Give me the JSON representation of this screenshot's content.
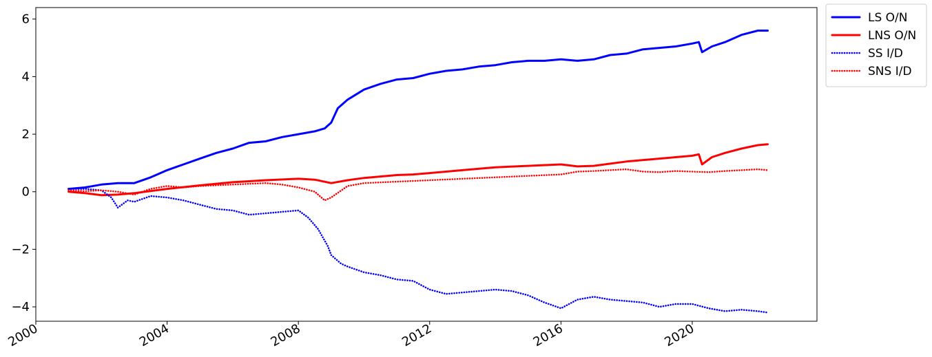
{
  "chart_data": {
    "type": "line",
    "title": "",
    "xlabel": "",
    "ylabel": "",
    "xlim": [
      2000,
      2023.8
    ],
    "ylim": [
      -4.5,
      6.4
    ],
    "x_ticks": [
      2000,
      2004,
      2008,
      2012,
      2016,
      2020
    ],
    "x_tick_labels": [
      "2000",
      "2004",
      "2008",
      "2012",
      "2016",
      "2020"
    ],
    "y_ticks": [
      -4,
      -2,
      0,
      2,
      4,
      6
    ],
    "y_tick_labels": [
      "−4",
      "−2",
      "0",
      "2",
      "4",
      "6"
    ],
    "grid": false,
    "legend": "outside-top-right",
    "series": [
      {
        "name": "LS O/N",
        "color": "#0000ff",
        "style": "solid",
        "x": [
          2001.0,
          2001.5,
          2002.0,
          2002.5,
          2003.0,
          2003.5,
          2004.0,
          2004.5,
          2005.0,
          2005.5,
          2006.0,
          2006.5,
          2007.0,
          2007.5,
          2008.0,
          2008.5,
          2008.8,
          2009.0,
          2009.2,
          2009.5,
          2010.0,
          2010.5,
          2011.0,
          2011.5,
          2012.0,
          2012.5,
          2013.0,
          2013.5,
          2014.0,
          2014.5,
          2015.0,
          2015.5,
          2016.0,
          2016.5,
          2017.0,
          2017.5,
          2018.0,
          2018.5,
          2019.0,
          2019.5,
          2020.0,
          2020.2,
          2020.3,
          2020.6,
          2021.0,
          2021.5,
          2022.0,
          2022.3
        ],
        "y": [
          0.1,
          0.15,
          0.25,
          0.3,
          0.3,
          0.5,
          0.75,
          0.95,
          1.15,
          1.35,
          1.5,
          1.7,
          1.75,
          1.9,
          2.0,
          2.1,
          2.2,
          2.4,
          2.9,
          3.2,
          3.55,
          3.75,
          3.9,
          3.95,
          4.1,
          4.2,
          4.25,
          4.35,
          4.4,
          4.5,
          4.55,
          4.55,
          4.6,
          4.55,
          4.6,
          4.75,
          4.8,
          4.95,
          5.0,
          5.05,
          5.15,
          5.2,
          4.85,
          5.05,
          5.2,
          5.45,
          5.6,
          5.6
        ]
      },
      {
        "name": "LNS O/N",
        "color": "#ff0000",
        "style": "solid",
        "x": [
          2001.0,
          2001.5,
          2002.0,
          2002.5,
          2003.0,
          2004.0,
          2005.0,
          2006.0,
          2007.0,
          2008.0,
          2008.5,
          2009.0,
          2009.5,
          2010.0,
          2011.0,
          2011.5,
          2012.0,
          2013.0,
          2014.0,
          2015.0,
          2016.0,
          2016.5,
          2017.0,
          2018.0,
          2019.0,
          2020.0,
          2020.2,
          2020.3,
          2020.6,
          2021.0,
          2021.5,
          2022.0,
          2022.3
        ],
        "y": [
          0.0,
          -0.05,
          -0.12,
          -0.1,
          -0.05,
          0.1,
          0.22,
          0.33,
          0.4,
          0.45,
          0.42,
          0.3,
          0.4,
          0.48,
          0.58,
          0.6,
          0.65,
          0.75,
          0.85,
          0.9,
          0.95,
          0.88,
          0.9,
          1.05,
          1.15,
          1.25,
          1.3,
          0.95,
          1.2,
          1.35,
          1.5,
          1.62,
          1.65
        ]
      },
      {
        "name": "SS I/D",
        "color": "#0000ff",
        "style": "dotted",
        "x": [
          2001.0,
          2001.5,
          2002.0,
          2002.3,
          2002.5,
          2002.8,
          2003.0,
          2003.5,
          2004.0,
          2004.5,
          2005.0,
          2005.5,
          2006.0,
          2006.5,
          2007.0,
          2007.5,
          2008.0,
          2008.3,
          2008.6,
          2008.9,
          2009.0,
          2009.3,
          2009.5,
          2010.0,
          2010.5,
          2011.0,
          2011.5,
          2012.0,
          2012.5,
          2013.0,
          2013.5,
          2014.0,
          2014.5,
          2015.0,
          2015.5,
          2016.0,
          2016.5,
          2017.0,
          2017.5,
          2018.0,
          2018.5,
          2019.0,
          2019.5,
          2020.0,
          2020.5,
          2021.0,
          2021.5,
          2022.0,
          2022.3
        ],
        "y": [
          0.1,
          0.1,
          0.05,
          -0.2,
          -0.55,
          -0.3,
          -0.35,
          -0.15,
          -0.2,
          -0.3,
          -0.45,
          -0.6,
          -0.65,
          -0.8,
          -0.75,
          -0.7,
          -0.65,
          -0.9,
          -1.3,
          -1.9,
          -2.2,
          -2.5,
          -2.6,
          -2.8,
          -2.9,
          -3.05,
          -3.1,
          -3.4,
          -3.55,
          -3.5,
          -3.45,
          -3.4,
          -3.45,
          -3.6,
          -3.85,
          -4.05,
          -3.75,
          -3.65,
          -3.75,
          -3.8,
          -3.85,
          -4.0,
          -3.9,
          -3.9,
          -4.05,
          -4.15,
          -4.1,
          -4.15,
          -4.2
        ]
      },
      {
        "name": "SNS I/D",
        "color": "#ff0000",
        "style": "dotted",
        "x": [
          2001.0,
          2001.5,
          2002.0,
          2002.5,
          2003.0,
          2003.5,
          2004.0,
          2004.5,
          2005.0,
          2006.0,
          2007.0,
          2007.5,
          2008.0,
          2008.5,
          2008.8,
          2009.0,
          2009.5,
          2010.0,
          2011.0,
          2012.0,
          2013.0,
          2014.0,
          2015.0,
          2016.0,
          2016.5,
          2017.0,
          2018.0,
          2018.5,
          2019.0,
          2019.5,
          2020.0,
          2020.5,
          2021.0,
          2021.5,
          2022.0,
          2022.3
        ],
        "y": [
          0.05,
          0.02,
          0.05,
          0.0,
          -0.1,
          0.1,
          0.2,
          0.15,
          0.2,
          0.25,
          0.3,
          0.25,
          0.15,
          0.0,
          -0.3,
          -0.2,
          0.2,
          0.3,
          0.35,
          0.4,
          0.45,
          0.5,
          0.55,
          0.6,
          0.7,
          0.72,
          0.78,
          0.7,
          0.68,
          0.72,
          0.7,
          0.68,
          0.72,
          0.75,
          0.78,
          0.75
        ]
      }
    ]
  }
}
